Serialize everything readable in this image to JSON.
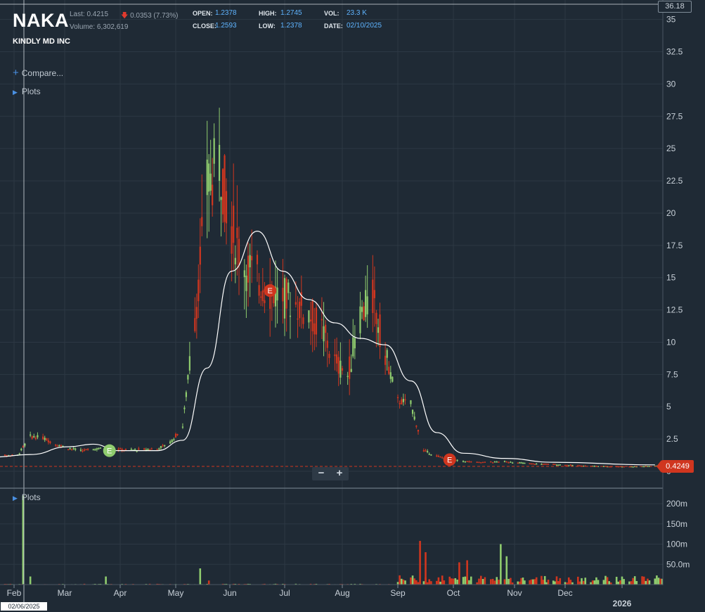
{
  "header": {
    "symbol": "NAKA",
    "company": "KINDLY MD INC",
    "last_text": "Last: 0.4215",
    "change_text": "0.0353 (7.73%)",
    "volume_text": "Volume: 6,302,619",
    "open_label": "OPEN:",
    "open_value": "1.2378",
    "close_label": "CLOSE:",
    "close_value": "1.2593",
    "high_label": "HIGH:",
    "high_value": "1.2745",
    "low_label": "LOW:",
    "low_value": "1.2378",
    "vol_label": "VOL:",
    "vol_value": "23.3 K",
    "date_label": "DATE:",
    "date_value": "02/10/2025"
  },
  "sidebar": {
    "compare_label": "Compare...",
    "plots_label": "Plots",
    "lower_plots_label": "Plots"
  },
  "zoom": {
    "minus": "−",
    "plus": "+"
  },
  "tags": {
    "current_price": "0.4249",
    "axis_top": "36.18",
    "crosshair_date": "02/06/2025"
  },
  "colors": {
    "up": "#8fcc6e",
    "down": "#d0361f",
    "background": "#1f2a35",
    "grid": "#2c3844",
    "ma": "#ffffff"
  },
  "chart_data": {
    "type": "candlestick",
    "x_ticks": [
      "Feb",
      "Mar",
      "Apr",
      "May",
      "Jun",
      "Jul",
      "Aug",
      "Sep",
      "Oct",
      "Nov",
      "Dec",
      "2026"
    ],
    "y_ticks": [
      "0",
      "2.5",
      "5",
      "7.5",
      "10",
      "12.5",
      "15",
      "17.5",
      "20",
      "22.5",
      "25",
      "27.5",
      "30",
      "32.5",
      "35"
    ],
    "ylim": [
      0,
      36.18
    ],
    "volume_ticks": [
      "50.0m",
      "100m",
      "150m",
      "200m"
    ],
    "volume_ylim": [
      0,
      225
    ],
    "earnings_markers": [
      {
        "label": "E",
        "date": "2025-03-26",
        "price": 1.6,
        "type": "up"
      },
      {
        "label": "E",
        "date": "2025-06-23",
        "price": 14.0,
        "type": "down"
      },
      {
        "label": "E",
        "date": "2025-09-29",
        "price": 0.9,
        "type": "down"
      }
    ],
    "price_points": [
      [
        "2025-01-20",
        1.2,
        "down"
      ],
      [
        "2025-02-03",
        1.25,
        "up"
      ],
      [
        "2025-02-10",
        2.7,
        "up"
      ],
      [
        "2025-02-17",
        2.6,
        "down"
      ],
      [
        "2025-02-24",
        2.1,
        "down"
      ],
      [
        "2025-03-03",
        1.8,
        "down"
      ],
      [
        "2025-03-10",
        1.6,
        "down"
      ],
      [
        "2025-03-17",
        1.7,
        "up"
      ],
      [
        "2025-03-24",
        1.8,
        "up"
      ],
      [
        "2025-03-31",
        1.7,
        "down"
      ],
      [
        "2025-04-07",
        1.65,
        "up"
      ],
      [
        "2025-04-14",
        1.7,
        "up"
      ],
      [
        "2025-04-21",
        1.75,
        "up"
      ],
      [
        "2025-04-28",
        2.2,
        "up"
      ],
      [
        "2025-05-05",
        3.5,
        "up"
      ],
      [
        "2025-05-12",
        12.0,
        "down"
      ],
      [
        "2025-05-19",
        22.0,
        "up"
      ],
      [
        "2025-05-26",
        24.0,
        "down"
      ],
      [
        "2025-06-02",
        19.0,
        "down"
      ],
      [
        "2025-06-09",
        16.0,
        "down"
      ],
      [
        "2025-06-16",
        15.0,
        "down"
      ],
      [
        "2025-06-23",
        14.0,
        "down"
      ],
      [
        "2025-06-30",
        13.5,
        "down"
      ],
      [
        "2025-07-07",
        13.0,
        "down"
      ],
      [
        "2025-07-14",
        12.2,
        "down"
      ],
      [
        "2025-07-21",
        11.0,
        "down"
      ],
      [
        "2025-07-28",
        8.5,
        "down"
      ],
      [
        "2025-08-04",
        7.4,
        "up"
      ],
      [
        "2025-08-11",
        12.0,
        "up"
      ],
      [
        "2025-08-18",
        13.5,
        "down"
      ],
      [
        "2025-08-25",
        9.0,
        "down"
      ],
      [
        "2025-09-01",
        5.5,
        "down"
      ],
      [
        "2025-09-08",
        5.2,
        "up"
      ],
      [
        "2025-09-15",
        1.6,
        "down"
      ],
      [
        "2025-09-22",
        1.2,
        "down"
      ],
      [
        "2025-09-29",
        0.9,
        "down"
      ],
      [
        "2025-10-13",
        0.7,
        "down"
      ],
      [
        "2025-10-27",
        0.75,
        "up"
      ],
      [
        "2025-11-10",
        0.6,
        "down"
      ],
      [
        "2025-11-24",
        0.55,
        "up"
      ],
      [
        "2025-12-08",
        0.45,
        "down"
      ],
      [
        "2025-12-22",
        0.4,
        "down"
      ],
      [
        "2026-01-05",
        0.38,
        "up"
      ],
      [
        "2026-01-19",
        0.42,
        "up"
      ]
    ],
    "moving_average": [
      [
        "2025-01-20",
        1.1
      ],
      [
        "2025-02-10",
        1.3
      ],
      [
        "2025-03-03",
        1.9
      ],
      [
        "2025-03-17",
        2.1
      ],
      [
        "2025-03-31",
        1.6
      ],
      [
        "2025-04-21",
        1.6
      ],
      [
        "2025-05-05",
        2.4
      ],
      [
        "2025-05-19",
        8.0
      ],
      [
        "2025-06-02",
        15.5
      ],
      [
        "2025-06-16",
        18.6
      ],
      [
        "2025-06-30",
        15.5
      ],
      [
        "2025-07-14",
        13.3
      ],
      [
        "2025-07-28",
        11.5
      ],
      [
        "2025-08-11",
        10.3
      ],
      [
        "2025-08-25",
        9.8
      ],
      [
        "2025-09-08",
        7.0
      ],
      [
        "2025-09-22",
        3.0
      ],
      [
        "2025-10-06",
        1.4
      ],
      [
        "2025-10-27",
        1.0
      ],
      [
        "2025-11-24",
        0.7
      ],
      [
        "2026-01-19",
        0.5
      ]
    ],
    "volume_spikes": [
      [
        "2025-02-06",
        220,
        "up"
      ],
      [
        "2025-02-10",
        20,
        "up"
      ],
      [
        "2025-03-24",
        20,
        "up"
      ],
      [
        "2025-05-15",
        40,
        "up"
      ],
      [
        "2025-05-20",
        10,
        "down"
      ],
      [
        "2025-09-13",
        108,
        "down"
      ],
      [
        "2025-09-16",
        80,
        "down"
      ],
      [
        "2025-10-04",
        55,
        "down"
      ],
      [
        "2025-10-08",
        60,
        "down"
      ],
      [
        "2025-10-25",
        100,
        "up"
      ],
      [
        "2025-10-28",
        70,
        "up"
      ]
    ]
  }
}
